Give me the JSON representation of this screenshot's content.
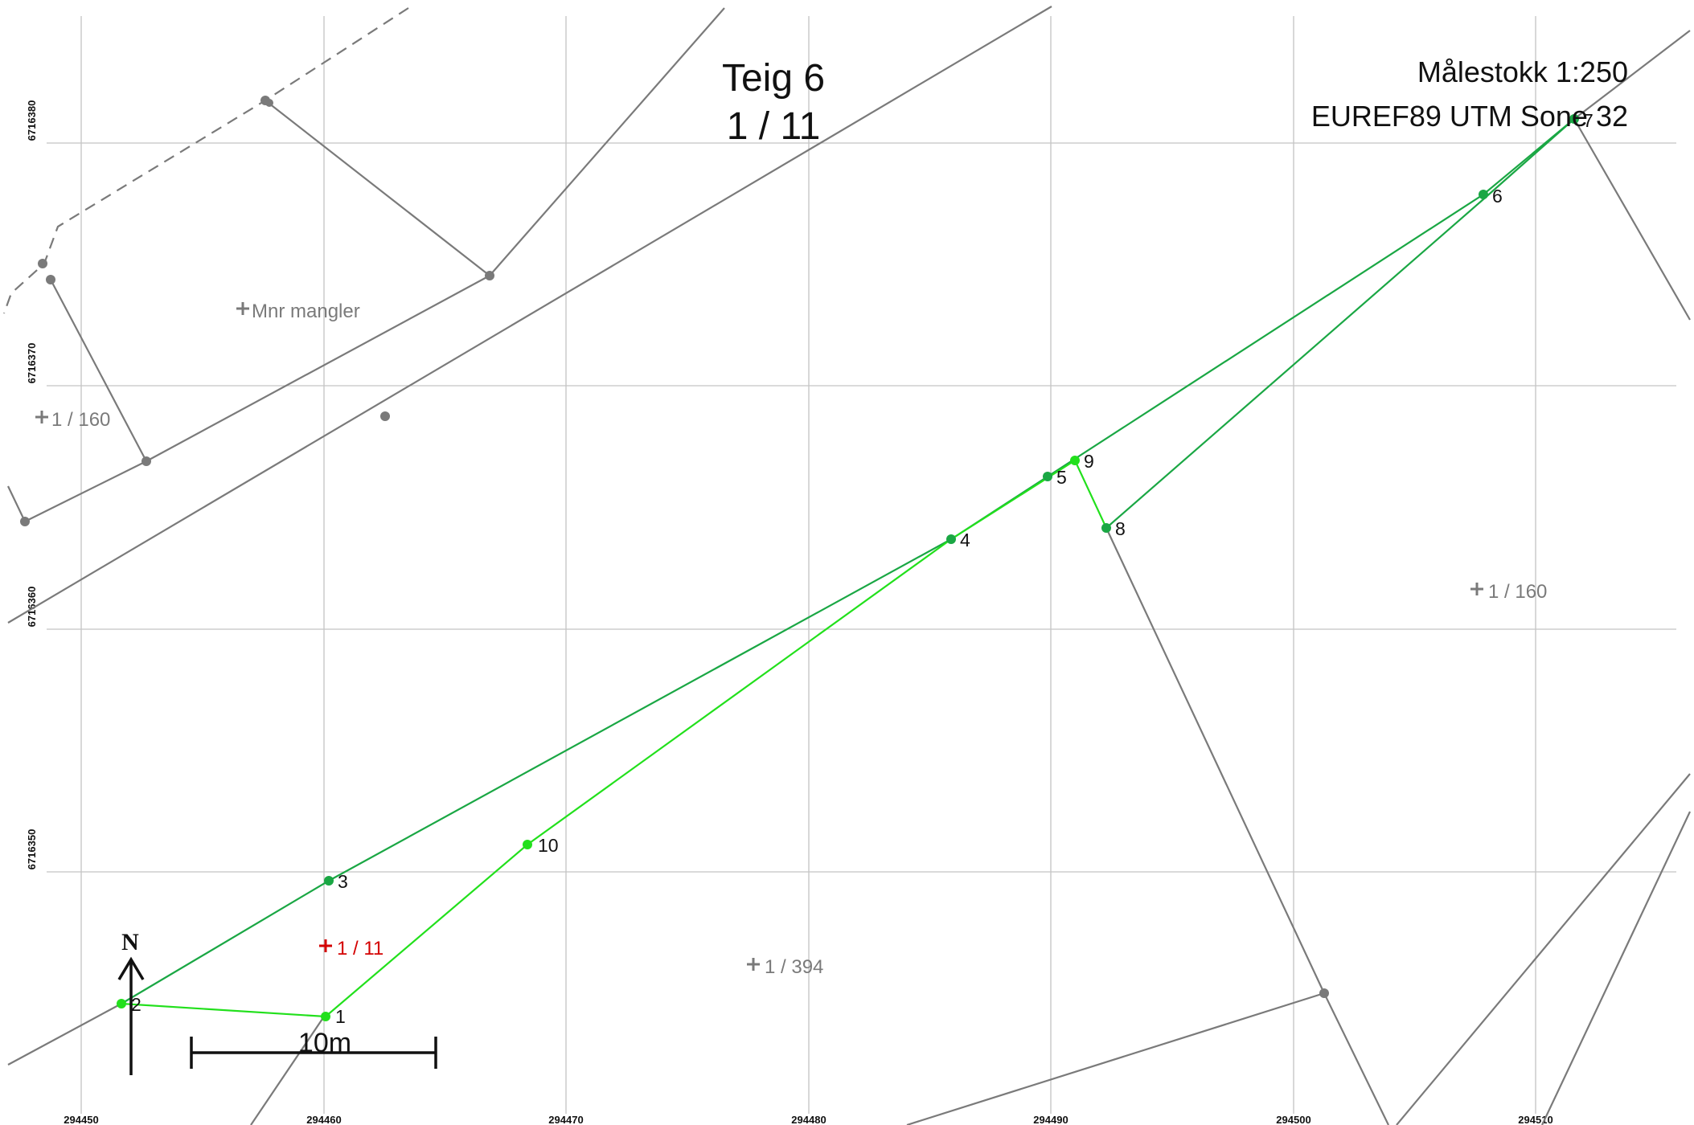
{
  "title": "Teig 6",
  "parcel_id": "1 / 11",
  "scale_text": "Målestokk 1:250",
  "crs_text": "EUREF89 UTM Sone 32",
  "scalebar_label": "10m",
  "north_label": "N",
  "x_ticks": [
    "294450",
    "294460",
    "294470",
    "294480",
    "294490",
    "294500",
    "294510"
  ],
  "y_ticks": [
    "6716380",
    "6716370",
    "6716360",
    "6716350"
  ],
  "parcel_labels": {
    "mnr_mangler": "Mnr mangler",
    "p160_left": "1 / 160",
    "p160_right": "1 / 160",
    "p11": "1 / 11",
    "p394": "1 / 394"
  },
  "points": [
    {
      "label": "1",
      "color": "light"
    },
    {
      "label": "2",
      "color": "light"
    },
    {
      "label": "3",
      "color": "dark"
    },
    {
      "label": "4",
      "color": "dark"
    },
    {
      "label": "5",
      "color": "dark"
    },
    {
      "label": "6",
      "color": "dark"
    },
    {
      "label": "7",
      "color": "dark"
    },
    {
      "label": "8",
      "color": "dark"
    },
    {
      "label": "9",
      "color": "light"
    },
    {
      "label": "10",
      "color": "light"
    }
  ],
  "colors": {
    "boundary_dark_green": "#1aa744",
    "boundary_light_green": "#22e01c",
    "neighbor_lines": "#7a7a7a",
    "active_parcel_label": "#d40000",
    "grid": "#c4c4c4"
  }
}
